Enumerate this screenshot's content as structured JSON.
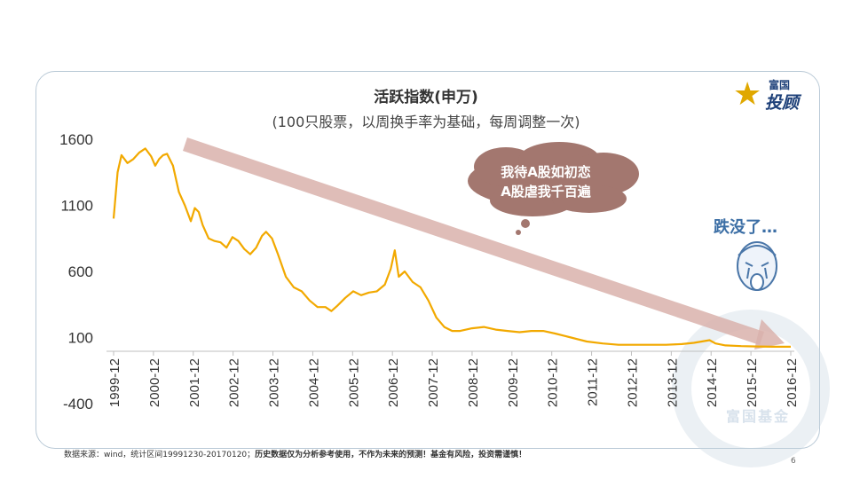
{
  "chart_data": {
    "type": "line",
    "title": "活跃指数(申万)",
    "subtitle": "(100只股票，以周换手率为基础，每周调整一次)",
    "y_ticks": [
      1600,
      1100,
      600,
      100,
      -400
    ],
    "ylim": [
      -400,
      1600
    ],
    "x_ticks": [
      "1999-12",
      "2000-12",
      "2001-12",
      "2002-12",
      "2003-12",
      "2004-12",
      "2005-12",
      "2006-12",
      "2007-12",
      "2008-12",
      "2009-12",
      "2010-12",
      "2011-12",
      "2012-12",
      "2013-12",
      "2014-12",
      "2015-12",
      "2016-12"
    ],
    "series": [
      {
        "color": "#f2a900",
        "points": [
          [
            1999.95,
            1000
          ],
          [
            2000.05,
            1350
          ],
          [
            2000.15,
            1480
          ],
          [
            2000.3,
            1420
          ],
          [
            2000.45,
            1450
          ],
          [
            2000.6,
            1500
          ],
          [
            2000.75,
            1530
          ],
          [
            2000.9,
            1470
          ],
          [
            2001.0,
            1400
          ],
          [
            2001.1,
            1450
          ],
          [
            2001.2,
            1480
          ],
          [
            2001.3,
            1490
          ],
          [
            2001.45,
            1400
          ],
          [
            2001.6,
            1200
          ],
          [
            2001.75,
            1100
          ],
          [
            2001.9,
            980
          ],
          [
            2002.0,
            1080
          ],
          [
            2002.1,
            1050
          ],
          [
            2002.2,
            950
          ],
          [
            2002.35,
            850
          ],
          [
            2002.5,
            830
          ],
          [
            2002.65,
            820
          ],
          [
            2002.8,
            780
          ],
          [
            2002.95,
            860
          ],
          [
            2003.1,
            830
          ],
          [
            2003.25,
            770
          ],
          [
            2003.4,
            730
          ],
          [
            2003.55,
            780
          ],
          [
            2003.7,
            870
          ],
          [
            2003.8,
            900
          ],
          [
            2003.95,
            850
          ],
          [
            2004.1,
            730
          ],
          [
            2004.3,
            560
          ],
          [
            2004.5,
            480
          ],
          [
            2004.7,
            450
          ],
          [
            2004.9,
            380
          ],
          [
            2005.1,
            330
          ],
          [
            2005.3,
            330
          ],
          [
            2005.45,
            300
          ],
          [
            2005.6,
            340
          ],
          [
            2005.8,
            400
          ],
          [
            2006.0,
            450
          ],
          [
            2006.2,
            420
          ],
          [
            2006.4,
            440
          ],
          [
            2006.6,
            450
          ],
          [
            2006.8,
            500
          ],
          [
            2006.95,
            620
          ],
          [
            2007.05,
            760
          ],
          [
            2007.15,
            560
          ],
          [
            2007.3,
            600
          ],
          [
            2007.5,
            520
          ],
          [
            2007.7,
            480
          ],
          [
            2007.9,
            380
          ],
          [
            2008.1,
            250
          ],
          [
            2008.3,
            180
          ],
          [
            2008.5,
            150
          ],
          [
            2008.7,
            150
          ],
          [
            2009.0,
            170
          ],
          [
            2009.3,
            180
          ],
          [
            2009.6,
            160
          ],
          [
            2009.9,
            150
          ],
          [
            2010.2,
            140
          ],
          [
            2010.5,
            150
          ],
          [
            2010.8,
            150
          ],
          [
            2011.1,
            130
          ],
          [
            2011.5,
            100
          ],
          [
            2011.9,
            70
          ],
          [
            2012.3,
            55
          ],
          [
            2012.7,
            45
          ],
          [
            2013.1,
            45
          ],
          [
            2013.5,
            45
          ],
          [
            2013.9,
            45
          ],
          [
            2014.3,
            50
          ],
          [
            2014.6,
            60
          ],
          [
            2014.8,
            70
          ],
          [
            2015.0,
            80
          ],
          [
            2015.15,
            55
          ],
          [
            2015.4,
            40
          ],
          [
            2015.8,
            35
          ],
          [
            2016.2,
            32
          ],
          [
            2016.6,
            30
          ],
          [
            2017.05,
            30
          ]
        ]
      }
    ],
    "annotation_bubble": [
      "我待A股如初恋",
      "A股虐我千百遍"
    ],
    "annotation_fall": "跌没了…"
  },
  "logo": {
    "line1": "富国",
    "line2": "投顾",
    "star": "★"
  },
  "watermark": "富国基金",
  "footer": {
    "source": "数据来源：wind，统计区间19991230-20170120；",
    "disclaimer": "历史数据仅为分析参考使用，不作为未来的预测！基金有风险，投资需谨慎！"
  },
  "page_number": "6"
}
